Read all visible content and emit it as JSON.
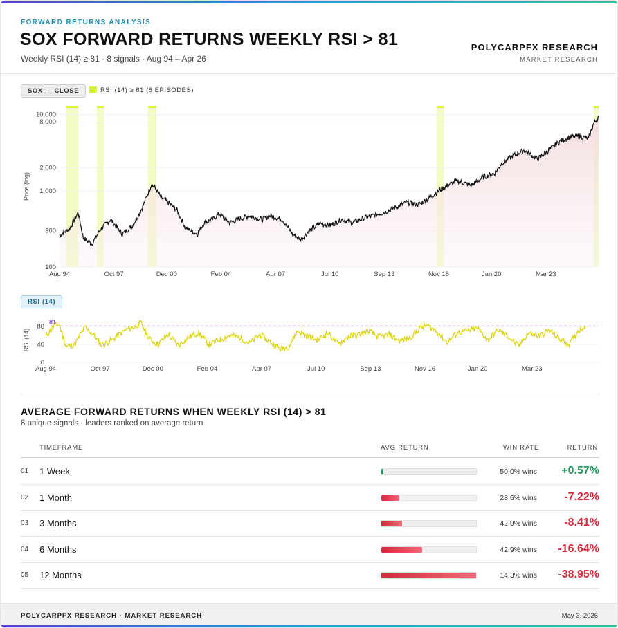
{
  "header": {
    "eyebrow": "FORWARD RETURNS ANALYSIS",
    "title": "SOX FORWARD RETURNS WEEKLY RSI > 81",
    "subtitle": "Weekly RSI (14) ≥ 81 · 8 signals · Aug 94 – Apr 26",
    "brand": "POLYCARPFX RESEARCH",
    "brand_sub": "MARKET RESEARCH"
  },
  "price_panel": {
    "tag": "SOX — CLOSE",
    "legend": "RSI (14) ≥ 81 (8 EPISODES)"
  },
  "rsi_panel": {
    "tag": "RSI (14)",
    "threshold_label": "81"
  },
  "colors": {
    "price_line": "#111111",
    "rsi_line": "#dcd40a",
    "highlight": "#e4f57a",
    "threshold": "#b487e0",
    "positive": "#1e9a5a",
    "negative": "#d42a3c",
    "accent": "#1f8fb0"
  },
  "chart_data": [
    {
      "type": "line",
      "name": "price",
      "ylabel": "Price (log)",
      "y_scale": "log",
      "ylim": [
        100,
        13000
      ],
      "xlim": [
        1994.6,
        2026.3
      ],
      "y_ticks": [
        100,
        300,
        1000,
        2000,
        8000,
        10000
      ],
      "y_tick_labels": [
        "100",
        "300",
        "1,000",
        "2,000",
        "8,000",
        "10,000"
      ],
      "x_ticks": [
        1994.6,
        1997.8,
        2000.9,
        2004.1,
        2007.3,
        2010.5,
        2013.7,
        2016.9,
        2020.0,
        2023.2
      ],
      "x_tick_labels": [
        "Aug 94",
        "Oct 97",
        "Dec 00",
        "Feb 04",
        "Apr 07",
        "Jul 10",
        "Sep 13",
        "Nov 16",
        "Jan 20",
        "Mar 23"
      ],
      "series": [
        {
          "x": [
            1994.6,
            1995.2,
            1995.7,
            1996.0,
            1996.5,
            1997.0,
            1997.6,
            1998.3,
            1998.9,
            1999.5,
            2000.0,
            2000.2,
            2000.6,
            2001.0,
            2001.5,
            2002.0,
            2002.7,
            2003.1,
            2003.6,
            2004.0,
            2004.6,
            2005.2,
            2005.8,
            2006.5,
            2007.0,
            2007.7,
            2008.3,
            2008.8,
            2009.3,
            2009.9,
            2010.5,
            2011.2,
            2011.8,
            2012.4,
            2013.0,
            2013.7,
            2014.3,
            2015.0,
            2015.7,
            2016.2,
            2016.9,
            2017.5,
            2018.0,
            2018.8,
            2019.5,
            2020.2,
            2020.6,
            2021.3,
            2021.9,
            2022.7,
            2023.3,
            2024.0,
            2024.5,
            2025.2,
            2025.7,
            2026.0,
            2026.3
          ],
          "values": [
            260,
            320,
            520,
            240,
            200,
            310,
            420,
            270,
            350,
            620,
            1200,
            1100,
            800,
            700,
            560,
            330,
            270,
            380,
            420,
            500,
            380,
            430,
            470,
            420,
            470,
            420,
            270,
            230,
            300,
            370,
            350,
            420,
            380,
            430,
            470,
            520,
            600,
            700,
            660,
            760,
            1000,
            1200,
            1350,
            1180,
            1500,
            1700,
            2300,
            2900,
            3400,
            2600,
            3300,
            4400,
            5000,
            5200,
            4800,
            7500,
            9500
          ]
        }
      ],
      "highlight_periods": [
        [
          1995.0,
          1995.7
        ],
        [
          1996.8,
          1997.2
        ],
        [
          1999.8,
          2000.3
        ],
        [
          2016.8,
          2017.2
        ],
        [
          2026.0,
          2026.3
        ]
      ]
    },
    {
      "type": "line",
      "name": "rsi",
      "ylabel": "RSI (14)",
      "ylim": [
        0,
        100
      ],
      "xlim": [
        1994.6,
        2026.3
      ],
      "y_ticks": [
        0,
        40,
        80
      ],
      "y_tick_labels": [
        "0",
        "40",
        "80"
      ],
      "threshold": 81,
      "x_ticks": [
        1994.6,
        1997.8,
        2000.9,
        2004.1,
        2007.3,
        2010.5,
        2013.7,
        2016.9,
        2020.0,
        2023.2
      ],
      "x_tick_labels": [
        "Aug 94",
        "Oct 97",
        "Dec 00",
        "Feb 04",
        "Apr 07",
        "Jul 10",
        "Sep 13",
        "Nov 16",
        "Jan 20",
        "Mar 23"
      ],
      "series": [
        {
          "x": [
            1994.6,
            1995.1,
            1995.4,
            1995.8,
            1996.3,
            1996.9,
            1997.4,
            1997.9,
            1998.4,
            1998.9,
            1999.4,
            1999.9,
            2000.2,
            2000.7,
            2001.2,
            2001.8,
            2002.4,
            2003.0,
            2003.6,
            2004.2,
            2004.8,
            2005.4,
            2006.0,
            2006.6,
            2007.2,
            2007.8,
            2008.4,
            2008.9,
            2009.4,
            2010.0,
            2010.6,
            2011.2,
            2011.8,
            2012.4,
            2013.0,
            2013.6,
            2014.2,
            2014.8,
            2015.4,
            2016.0,
            2016.6,
            2017.0,
            2017.6,
            2018.2,
            2018.8,
            2019.4,
            2020.0,
            2020.6,
            2021.2,
            2021.8,
            2022.4,
            2023.0,
            2023.6,
            2024.2,
            2024.8,
            2025.4,
            2025.9,
            2026.3
          ],
          "values": [
            58,
            82,
            84,
            35,
            40,
            78,
            62,
            38,
            48,
            62,
            74,
            80,
            88,
            52,
            40,
            62,
            38,
            56,
            66,
            40,
            50,
            60,
            56,
            42,
            62,
            46,
            30,
            36,
            70,
            58,
            50,
            66,
            40,
            58,
            62,
            70,
            56,
            62,
            48,
            54,
            76,
            82,
            70,
            44,
            66,
            70,
            76,
            50,
            72,
            58,
            36,
            66,
            58,
            72,
            52,
            40,
            70,
            80
          ]
        }
      ]
    }
  ],
  "table": {
    "title": "AVERAGE FORWARD RETURNS WHEN WEEKLY RSI (14) > 81",
    "subtitle": "8 unique signals · leaders ranked on average return",
    "headers": {
      "timeframe": "TIMEFRAME",
      "avg_return": "AVG RETURN",
      "win_rate": "WIN RATE",
      "return": "RETURN"
    },
    "bar_max_abs_pct": 38.95,
    "rows": [
      {
        "num": "01",
        "timeframe": "1 Week",
        "win": "50.0% wins",
        "ret": "+0.57%",
        "value": 0.57
      },
      {
        "num": "02",
        "timeframe": "1 Month",
        "win": "28.6% wins",
        "ret": "-7.22%",
        "value": -7.22
      },
      {
        "num": "03",
        "timeframe": "3 Months",
        "win": "42.9% wins",
        "ret": "-8.41%",
        "value": -8.41
      },
      {
        "num": "04",
        "timeframe": "6 Months",
        "win": "42.9% wins",
        "ret": "-16.64%",
        "value": -16.64
      },
      {
        "num": "05",
        "timeframe": "12 Months",
        "win": "14.3% wins",
        "ret": "-38.95%",
        "value": -38.95
      }
    ]
  },
  "footer": {
    "left": "POLYCARPFX RESEARCH · MARKET RESEARCH",
    "right": "May 3, 2026"
  }
}
